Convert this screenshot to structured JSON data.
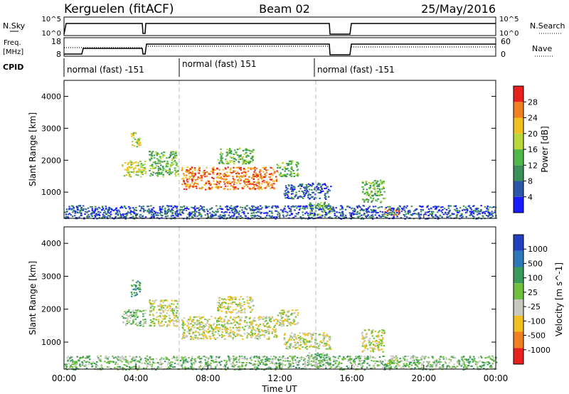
{
  "header": {
    "station": "Kerguelen (fitACF)",
    "beam": "Beam 02",
    "date": "25/May/2016"
  },
  "strips": {
    "nsky_label": "N.Sky",
    "nsky_ticks": [
      "10^5",
      "10^0"
    ],
    "nsearch_label": "N.Search",
    "nsearch_ticks": [
      "10^5",
      "10^0"
    ],
    "freq_label_1": "Freq.",
    "freq_label_2": "[MHz]",
    "freq_ticks": [
      "18",
      "8"
    ],
    "nave_label": "Nave",
    "nave_ticks": [
      "60",
      "0"
    ],
    "cpid_label": "CPID",
    "cpid_segments": [
      {
        "label": "normal (fast) -151",
        "start": 0.0,
        "end": 6.4
      },
      {
        "label": "normal (fast) 151",
        "start": 6.4,
        "end": 14.0
      },
      {
        "label": "normal (fast) -151",
        "start": 14.0,
        "end": 24.0
      }
    ]
  },
  "chart_data": [
    {
      "type": "heatmap",
      "name": "power",
      "ylabel": "Slant Range [km]",
      "yticks": [
        "1000",
        "2000",
        "3000",
        "4000"
      ],
      "ylim": [
        180,
        4500
      ],
      "xlim": [
        0,
        24
      ],
      "xticks": [
        "00:00",
        "04:00",
        "08:00",
        "12:00",
        "16:00",
        "20:00",
        "00:00"
      ],
      "colorbar_label": "Power [dB]",
      "colorbar_ticks": [
        "4",
        "8",
        "12",
        "16",
        "20",
        "24",
        "28"
      ],
      "colors": [
        "#1a1aff",
        "#2c56a8",
        "#3a8f5a",
        "#4fb84a",
        "#b8d83a",
        "#f0c020",
        "#f08020",
        "#e82020"
      ],
      "echo_regions": [
        {
          "t0": 3.2,
          "t1": 4.5,
          "r0": 1500,
          "r1": 2000,
          "level": 4
        },
        {
          "t0": 3.7,
          "t1": 4.2,
          "r0": 2400,
          "r1": 2900,
          "level": 4
        },
        {
          "t0": 4.7,
          "t1": 6.3,
          "r0": 1500,
          "r1": 2300,
          "level": 3
        },
        {
          "t0": 6.5,
          "t1": 11.8,
          "r0": 1100,
          "r1": 1800,
          "level": 6
        },
        {
          "t0": 8.5,
          "t1": 10.5,
          "r0": 1900,
          "r1": 2400,
          "level": 3
        },
        {
          "t0": 11.8,
          "t1": 13.0,
          "r0": 1500,
          "r1": 2000,
          "level": 3
        },
        {
          "t0": 12.2,
          "t1": 14.8,
          "r0": 800,
          "r1": 1300,
          "level": 1
        },
        {
          "t0": 13.5,
          "t1": 14.8,
          "r0": 300,
          "r1": 700,
          "level": 3
        },
        {
          "t0": 16.5,
          "t1": 17.8,
          "r0": 700,
          "r1": 1400,
          "level": 3
        },
        {
          "t0": 17.8,
          "t1": 18.6,
          "r0": 300,
          "r1": 500,
          "level": 6
        },
        {
          "t0": 0.0,
          "t1": 24.0,
          "r0": 180,
          "r1": 600,
          "level": 1
        }
      ]
    },
    {
      "type": "heatmap",
      "name": "velocity",
      "ylabel": "Slant Range [km]",
      "yticks": [
        "1000",
        "2000",
        "3000",
        "4000"
      ],
      "ylim": [
        180,
        4500
      ],
      "xlim": [
        0,
        24
      ],
      "xticks": [
        "00:00",
        "04:00",
        "08:00",
        "12:00",
        "16:00",
        "20:00",
        "00:00"
      ],
      "xlabel": "Time UT",
      "colorbar_label": "Velocity [m s^-1]",
      "colorbar_ticks": [
        "1000",
        "500",
        "100",
        "25",
        "-25",
        "-100",
        "-500",
        "-1000"
      ],
      "colors": [
        "#2040c0",
        "#2c78b8",
        "#3a9a5a",
        "#70c040",
        "#c8c8c0",
        "#f0c020",
        "#f08020",
        "#e82020"
      ],
      "echo_regions": [
        {
          "t0": 3.2,
          "t1": 4.5,
          "r0": 1500,
          "r1": 2000,
          "level": 3
        },
        {
          "t0": 3.7,
          "t1": 4.2,
          "r0": 2400,
          "r1": 2900,
          "level": 2
        },
        {
          "t0": 4.7,
          "t1": 6.3,
          "r0": 1500,
          "r1": 2300,
          "level": 4
        },
        {
          "t0": 6.5,
          "t1": 11.8,
          "r0": 1100,
          "r1": 1800,
          "level": 4
        },
        {
          "t0": 8.5,
          "t1": 10.5,
          "r0": 1900,
          "r1": 2400,
          "level": 4
        },
        {
          "t0": 11.8,
          "t1": 13.0,
          "r0": 1500,
          "r1": 2000,
          "level": 4
        },
        {
          "t0": 12.2,
          "t1": 14.8,
          "r0": 800,
          "r1": 1300,
          "level": 4
        },
        {
          "t0": 13.5,
          "t1": 14.8,
          "r0": 300,
          "r1": 700,
          "level": 3
        },
        {
          "t0": 16.5,
          "t1": 17.8,
          "r0": 700,
          "r1": 1400,
          "level": 4
        },
        {
          "t0": 17.8,
          "t1": 18.6,
          "r0": 300,
          "r1": 500,
          "level": 4
        },
        {
          "t0": 0.0,
          "t1": 24.0,
          "r0": 180,
          "r1": 600,
          "level": 3
        }
      ]
    }
  ]
}
